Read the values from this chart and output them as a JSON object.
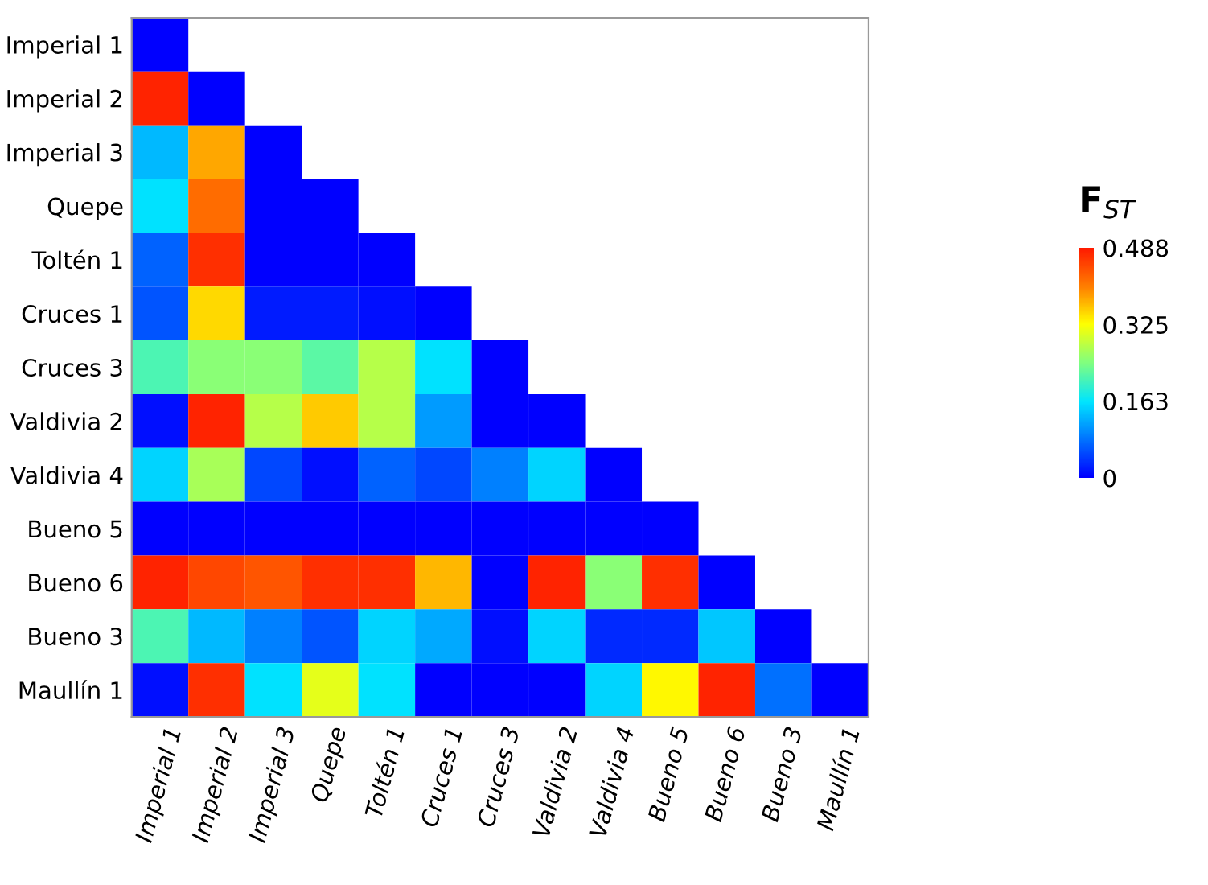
{
  "chart_data": {
    "type": "heatmap",
    "clabel": "F$_{ST}$",
    "categories": [
      "Imperial 1",
      "Imperial 2",
      "Imperial 3",
      "Quepe",
      "Toltén 1",
      "Cruces 1",
      "Cruces 3",
      "Valdivia 2",
      "Valdivia 4",
      "Bueno 5",
      "Bueno 6",
      "Bueno 3",
      "Maullín 1"
    ],
    "y_categories": [
      "Imperial 1",
      "Imperial 2",
      "Imperial 3",
      "Quepe",
      "Toltén 1",
      "Cruces 1",
      "Cruces 3",
      "Valdivia 2",
      "Valdivia 4",
      "Bueno 5",
      "Bueno 6",
      "Bueno 3",
      "Maullín 1"
    ],
    "cells": [
      [
        0,
        null,
        null,
        null,
        null,
        null,
        null,
        null,
        null,
        null,
        null,
        null,
        null
      ],
      [
        0.48,
        0,
        null,
        null,
        null,
        null,
        null,
        null,
        null,
        null,
        null,
        null,
        null
      ],
      [
        0.13,
        0.38,
        0,
        null,
        null,
        null,
        null,
        null,
        null,
        null,
        null,
        null,
        null
      ],
      [
        0.16,
        0.42,
        0,
        0,
        null,
        null,
        null,
        null,
        null,
        null,
        null,
        null,
        null
      ],
      [
        0.07,
        0.47,
        0,
        0,
        0,
        null,
        null,
        null,
        null,
        null,
        null,
        null,
        null
      ],
      [
        0.06,
        0.35,
        0.02,
        0.02,
        0.01,
        0,
        null,
        null,
        null,
        null,
        null,
        null,
        null
      ],
      [
        0.21,
        0.25,
        0.25,
        0.22,
        0.28,
        0.16,
        0,
        null,
        null,
        null,
        null,
        null,
        null
      ],
      [
        0.01,
        0.48,
        0.28,
        0.36,
        0.28,
        0.11,
        0,
        0,
        null,
        null,
        null,
        null,
        null
      ],
      [
        0.15,
        0.27,
        0.05,
        0.01,
        0.07,
        0.05,
        0.09,
        0.15,
        0,
        null,
        null,
        null,
        null
      ],
      [
        0,
        0,
        0,
        0,
        0,
        0,
        0,
        0,
        0,
        0,
        null,
        null,
        null
      ],
      [
        0.48,
        0.45,
        0.44,
        0.47,
        0.47,
        0.37,
        0,
        0.48,
        0.25,
        0.47,
        0,
        null,
        null
      ],
      [
        0.21,
        0.13,
        0.09,
        0.06,
        0.15,
        0.12,
        0.01,
        0.15,
        0.03,
        0.03,
        0.14,
        0,
        null
      ],
      [
        0.01,
        0.47,
        0.16,
        0.31,
        0.16,
        0,
        0,
        0,
        0.15,
        0.33,
        0.48,
        0.08,
        0
      ]
    ],
    "clim": [
      0,
      0.488
    ],
    "cticks": [
      0,
      0.163,
      0.325,
      0.488
    ]
  }
}
